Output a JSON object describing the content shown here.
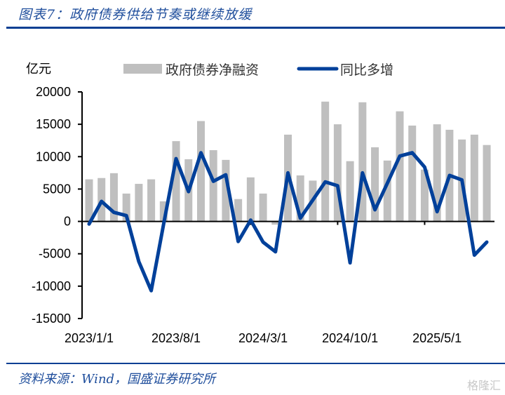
{
  "title": "图表7：政府债券供给节奏或继续放缓",
  "source": "资料来源：Wind，国盛证券研究所",
  "watermark": "格隆汇",
  "colors": {
    "bar": "#bfbfbf",
    "line": "#00409a",
    "accent": "#0a3f93"
  },
  "chart_data": {
    "type": "bar+line",
    "yunit": "亿元",
    "ylim": [
      -15000,
      20000
    ],
    "yticks": [
      "20000",
      "15000",
      "10000",
      "5000",
      "0",
      "-5000",
      "-10000",
      "-15000"
    ],
    "xtick_labels": [
      "2023/1/1",
      "2023/8/1",
      "2024/3/1",
      "2024/10/1",
      "2025/5/1"
    ],
    "legend_position": "top",
    "grid": false,
    "series": [
      {
        "name": "政府债券净融资",
        "type": "bar",
        "values": [
          6500,
          6700,
          7450,
          4300,
          5800,
          6500,
          3100,
          12400,
          9600,
          15500,
          11000,
          9500,
          3450,
          6800,
          4300,
          -500,
          13400,
          7100,
          6300,
          18500,
          15000,
          9300,
          18400,
          11450,
          9400,
          17000,
          14800,
          8000,
          15000,
          14150,
          12650,
          13400,
          11800
        ]
      },
      {
        "name": "同比多增",
        "type": "line",
        "values": [
          -400,
          3100,
          1400,
          900,
          -6200,
          -10700,
          -400,
          9700,
          4600,
          10600,
          6200,
          7200,
          -3100,
          200,
          -3200,
          -4700,
          7500,
          500,
          3300,
          6100,
          5500,
          -6400,
          7500,
          1800,
          5900,
          10100,
          10600,
          8400,
          1500,
          7100,
          6400,
          -5200,
          -3200
        ]
      }
    ]
  }
}
